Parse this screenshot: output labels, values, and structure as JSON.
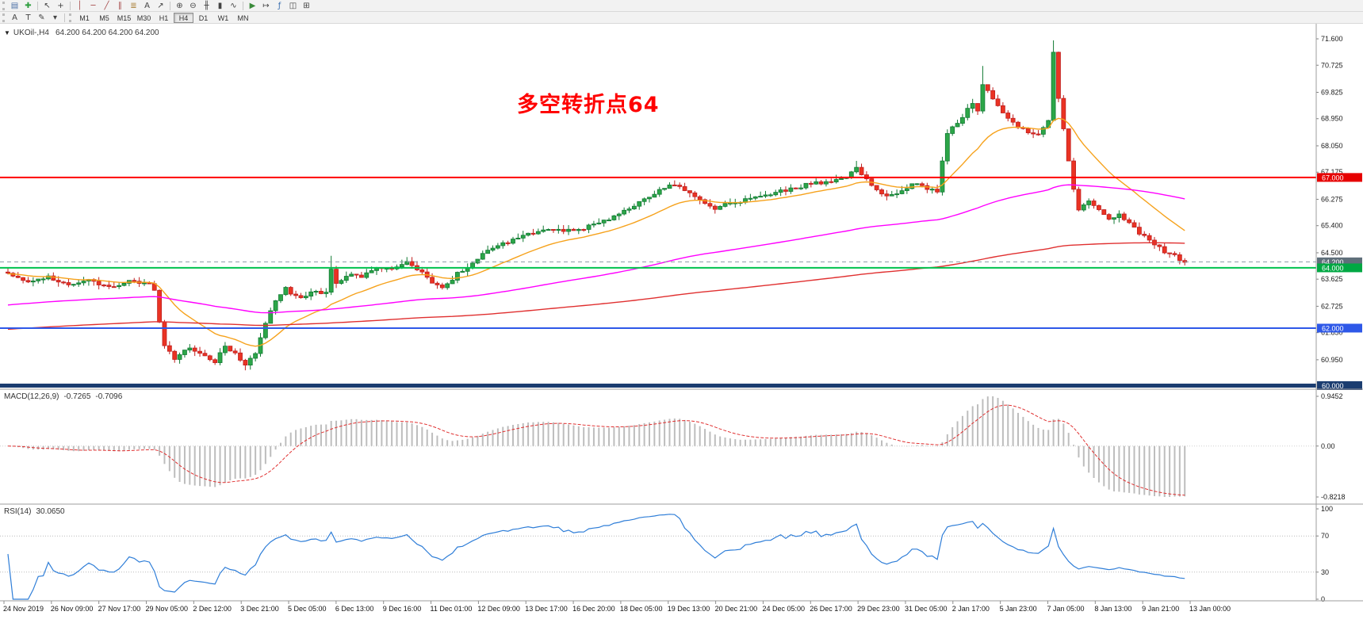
{
  "toolbar": {
    "row1": [
      {
        "type": "grip"
      },
      {
        "type": "icon",
        "name": "charts-tile",
        "glyph": "▤",
        "color": "#4a6fa5"
      },
      {
        "type": "icon",
        "name": "new-chart",
        "glyph": "✚",
        "color": "#2e9e3f"
      },
      {
        "type": "sep"
      },
      {
        "type": "icon",
        "name": "cursor",
        "glyph": "↖",
        "color": "#444444"
      },
      {
        "type": "icon",
        "name": "crosshair",
        "glyph": "+",
        "color": "#444444"
      },
      {
        "type": "sep"
      },
      {
        "type": "icon",
        "name": "vertical-line",
        "glyph": "│",
        "color": "#a54848"
      },
      {
        "type": "icon",
        "name": "horizontal-line",
        "glyph": "─",
        "color": "#a54848"
      },
      {
        "type": "icon",
        "name": "trendline",
        "glyph": "╱",
        "color": "#a54848"
      },
      {
        "type": "icon",
        "name": "equidistant-channel",
        "glyph": "∥",
        "color": "#a54848"
      },
      {
        "type": "icon",
        "name": "fibonacci-retracement",
        "glyph": "≣",
        "color": "#a98038"
      },
      {
        "type": "icon",
        "name": "text-label",
        "glyph": "A",
        "color": "#444444"
      },
      {
        "type": "icon",
        "name": "arrow-objects",
        "glyph": "↗",
        "color": "#444444"
      },
      {
        "type": "sep"
      },
      {
        "type": "icon",
        "name": "zoom-in",
        "glyph": "⊕",
        "color": "#444444"
      },
      {
        "type": "icon",
        "name": "zoom-out",
        "glyph": "⊖",
        "color": "#444444"
      },
      {
        "type": "icon",
        "name": "bar-chart-mode",
        "glyph": "╫",
        "color": "#444444"
      },
      {
        "type": "icon",
        "name": "candlestick-mode",
        "glyph": "▮",
        "color": "#444444"
      },
      {
        "type": "icon",
        "name": "line-chart-mode",
        "glyph": "∿",
        "color": "#444444"
      },
      {
        "type": "sep"
      },
      {
        "type": "icon",
        "name": "auto-scroll",
        "glyph": "▶",
        "color": "#3a8a3a"
      },
      {
        "type": "icon",
        "name": "chart-shift",
        "glyph": "↦",
        "color": "#444444"
      },
      {
        "type": "icon",
        "name": "indicators-list",
        "glyph": "ƒ",
        "color": "#3a6fb0"
      },
      {
        "type": "icon",
        "name": "tile-windows",
        "glyph": "◫",
        "color": "#444444"
      },
      {
        "type": "icon",
        "name": "grid-toggle",
        "glyph": "⊞",
        "color": "#444444"
      }
    ],
    "row2_icons": [
      {
        "name": "font-tool",
        "glyph": "A"
      },
      {
        "name": "text-tool",
        "glyph": "T"
      },
      {
        "name": "object-style-tool",
        "glyph": "✎"
      },
      {
        "name": "style-dropdown",
        "glyph": "▾"
      }
    ],
    "timeframes": [
      "M1",
      "M5",
      "M15",
      "M30",
      "H1",
      "H4",
      "D1",
      "W1",
      "MN"
    ],
    "active_timeframe": "H4"
  },
  "header": {
    "symbol_window_label": "UKOil-,H4",
    "ohlc_text": "64.200 64.200 64.200 64.200"
  },
  "chart_data": {
    "type": "candlestick",
    "symbol": "UKOil-",
    "timeframe": "H4",
    "ohlc_current": {
      "open": "64.200",
      "high": "64.200",
      "low": "64.200",
      "close": "64.200"
    },
    "ylim": [
      60.0,
      71.6
    ],
    "y_ticks": [
      "71.600",
      "70.725",
      "69.825",
      "68.950",
      "68.050",
      "67.175",
      "66.275",
      "65.400",
      "64.500",
      "63.625",
      "62.725",
      "61.850",
      "60.950"
    ],
    "x_labels": [
      "24 Nov 2019",
      "26 Nov 09:00",
      "27 Nov 17:00",
      "29 Nov 05:00",
      "2 Dec 12:00",
      "3 Dec 21:00",
      "5 Dec 05:00",
      "6 Dec 13:00",
      "9 Dec 16:00",
      "11 Dec 01:00",
      "12 Dec 09:00",
      "13 Dec 17:00",
      "16 Dec 20:00",
      "18 Dec 05:00",
      "19 Dec 13:00",
      "20 Dec 21:00",
      "24 Dec 05:00",
      "26 Dec 17:00",
      "29 Dec 23:00",
      "31 Dec 05:00",
      "2 Jan 17:00",
      "5 Jan 23:00",
      "7 Jan 05:00",
      "8 Jan 13:00",
      "9 Jan 21:00",
      "13 Jan 00:00"
    ],
    "candle_count": 234,
    "close_anchors": [
      [
        0,
        63.8
      ],
      [
        4,
        63.55
      ],
      [
        8,
        63.7
      ],
      [
        12,
        63.4
      ],
      [
        16,
        63.6
      ],
      [
        20,
        63.35
      ],
      [
        24,
        63.55
      ],
      [
        28,
        63.45
      ],
      [
        29,
        63.2
      ],
      [
        30,
        62.2
      ],
      [
        31,
        61.4
      ],
      [
        33,
        61.0
      ],
      [
        36,
        61.35
      ],
      [
        39,
        61.1
      ],
      [
        41,
        60.9
      ],
      [
        43,
        61.45
      ],
      [
        45,
        61.15
      ],
      [
        47,
        60.8
      ],
      [
        49,
        61.2
      ],
      [
        51,
        62.2
      ],
      [
        53,
        62.95
      ],
      [
        55,
        63.3
      ],
      [
        58,
        62.95
      ],
      [
        61,
        63.25
      ],
      [
        63,
        63.15
      ],
      [
        64,
        63.9
      ],
      [
        65,
        63.45
      ],
      [
        68,
        63.85
      ],
      [
        70,
        63.7
      ],
      [
        73,
        64.0
      ],
      [
        76,
        63.95
      ],
      [
        79,
        64.15
      ],
      [
        82,
        63.9
      ],
      [
        84,
        63.5
      ],
      [
        86,
        63.3
      ],
      [
        89,
        63.8
      ],
      [
        92,
        64.15
      ],
      [
        94,
        64.45
      ],
      [
        97,
        64.7
      ],
      [
        100,
        64.95
      ],
      [
        104,
        65.15
      ],
      [
        108,
        65.3
      ],
      [
        112,
        65.2
      ],
      [
        116,
        65.45
      ],
      [
        120,
        65.7
      ],
      [
        124,
        66.1
      ],
      [
        128,
        66.45
      ],
      [
        131,
        66.8
      ],
      [
        134,
        66.6
      ],
      [
        137,
        66.3
      ],
      [
        140,
        65.95
      ],
      [
        143,
        66.15
      ],
      [
        146,
        66.25
      ],
      [
        149,
        66.4
      ],
      [
        153,
        66.55
      ],
      [
        158,
        66.75
      ],
      [
        163,
        66.9
      ],
      [
        166,
        67.05
      ],
      [
        168,
        67.3
      ],
      [
        170,
        66.95
      ],
      [
        172,
        66.6
      ],
      [
        174,
        66.35
      ],
      [
        177,
        66.6
      ],
      [
        180,
        66.8
      ],
      [
        182,
        66.6
      ],
      [
        184,
        66.55
      ],
      [
        185,
        67.6
      ],
      [
        186,
        68.5
      ],
      [
        188,
        68.75
      ],
      [
        189,
        69.0
      ],
      [
        191,
        69.5
      ],
      [
        192,
        69.15
      ],
      [
        193,
        70.1
      ],
      [
        195,
        69.6
      ],
      [
        197,
        69.1
      ],
      [
        199,
        68.8
      ],
      [
        202,
        68.5
      ],
      [
        204,
        68.45
      ],
      [
        206,
        68.85
      ],
      [
        207,
        71.2
      ],
      [
        208,
        69.6
      ],
      [
        209,
        68.6
      ],
      [
        210,
        67.6
      ],
      [
        211,
        66.6
      ],
      [
        212,
        65.9
      ],
      [
        214,
        66.2
      ],
      [
        216,
        65.9
      ],
      [
        218,
        65.6
      ],
      [
        220,
        65.75
      ],
      [
        222,
        65.45
      ],
      [
        224,
        65.15
      ],
      [
        226,
        64.9
      ],
      [
        228,
        64.65
      ],
      [
        230,
        64.45
      ],
      [
        232,
        64.3
      ],
      [
        233,
        64.2
      ]
    ],
    "high_overrides": {
      "64": 64.4,
      "168": 67.55,
      "193": 70.7,
      "207": 71.55
    },
    "low_overrides": {
      "33": 60.85,
      "47": 60.6
    },
    "up_color": "#2ca648",
    "up_border": "#117a33",
    "down_color": "#ea3323",
    "down_border": "#c01f1f",
    "moving_averages": [
      {
        "name": "fast",
        "color": "#f6a21c",
        "alpha": 0.1,
        "init": 63.8
      },
      {
        "name": "medium",
        "color": "#ff00ff",
        "alpha": 0.016,
        "init": 62.75
      },
      {
        "name": "slow",
        "color": "#e03030",
        "alpha": 0.006,
        "init": 61.95
      }
    ],
    "hlines": [
      {
        "price": 67.0,
        "label": "67.000",
        "line_color": "#ff0000",
        "badge_color": "#e60000",
        "style": "solid",
        "width": 2
      },
      {
        "price": 64.2,
        "label": "64.200",
        "line_color": "#8a9aa5",
        "badge_color": "#5f6f7a",
        "style": "dash",
        "width": 1,
        "role": "current-price"
      },
      {
        "price": 64.0,
        "label": "64.000",
        "line_color": "#00c24e",
        "badge_color": "#00a843",
        "style": "solid",
        "width": 2
      },
      {
        "price": 62.0,
        "label": "62.000",
        "line_color": "#2e58e8",
        "badge_color": "#2e58e8",
        "style": "solid",
        "width": 2
      },
      {
        "price": 60.0,
        "label": "60.000",
        "line_color": "#1b3d70",
        "badge_color": "#1b3d70",
        "style": "solid",
        "width": 5
      }
    ],
    "annotation": {
      "text": "多空转折点64",
      "color": "#ff0000"
    },
    "indicators": {
      "macd": {
        "label": "MACD(12,26,9)",
        "value_main": "-0.7265",
        "value_signal": "-0.7096",
        "axis_labels": [
          "0.9452",
          "0.00",
          "-0.8218"
        ],
        "fast": 12,
        "slow": 26,
        "signal": 9,
        "histogram_color": "#bdbdbd",
        "signal_color": "#e03030"
      },
      "rsi": {
        "label": "RSI(14)",
        "value": "30.0650",
        "axis_labels": [
          "100",
          "70",
          "30",
          "0"
        ],
        "period": 14,
        "levels": [
          70,
          30
        ],
        "line_color": "#2f7ed8"
      }
    }
  }
}
